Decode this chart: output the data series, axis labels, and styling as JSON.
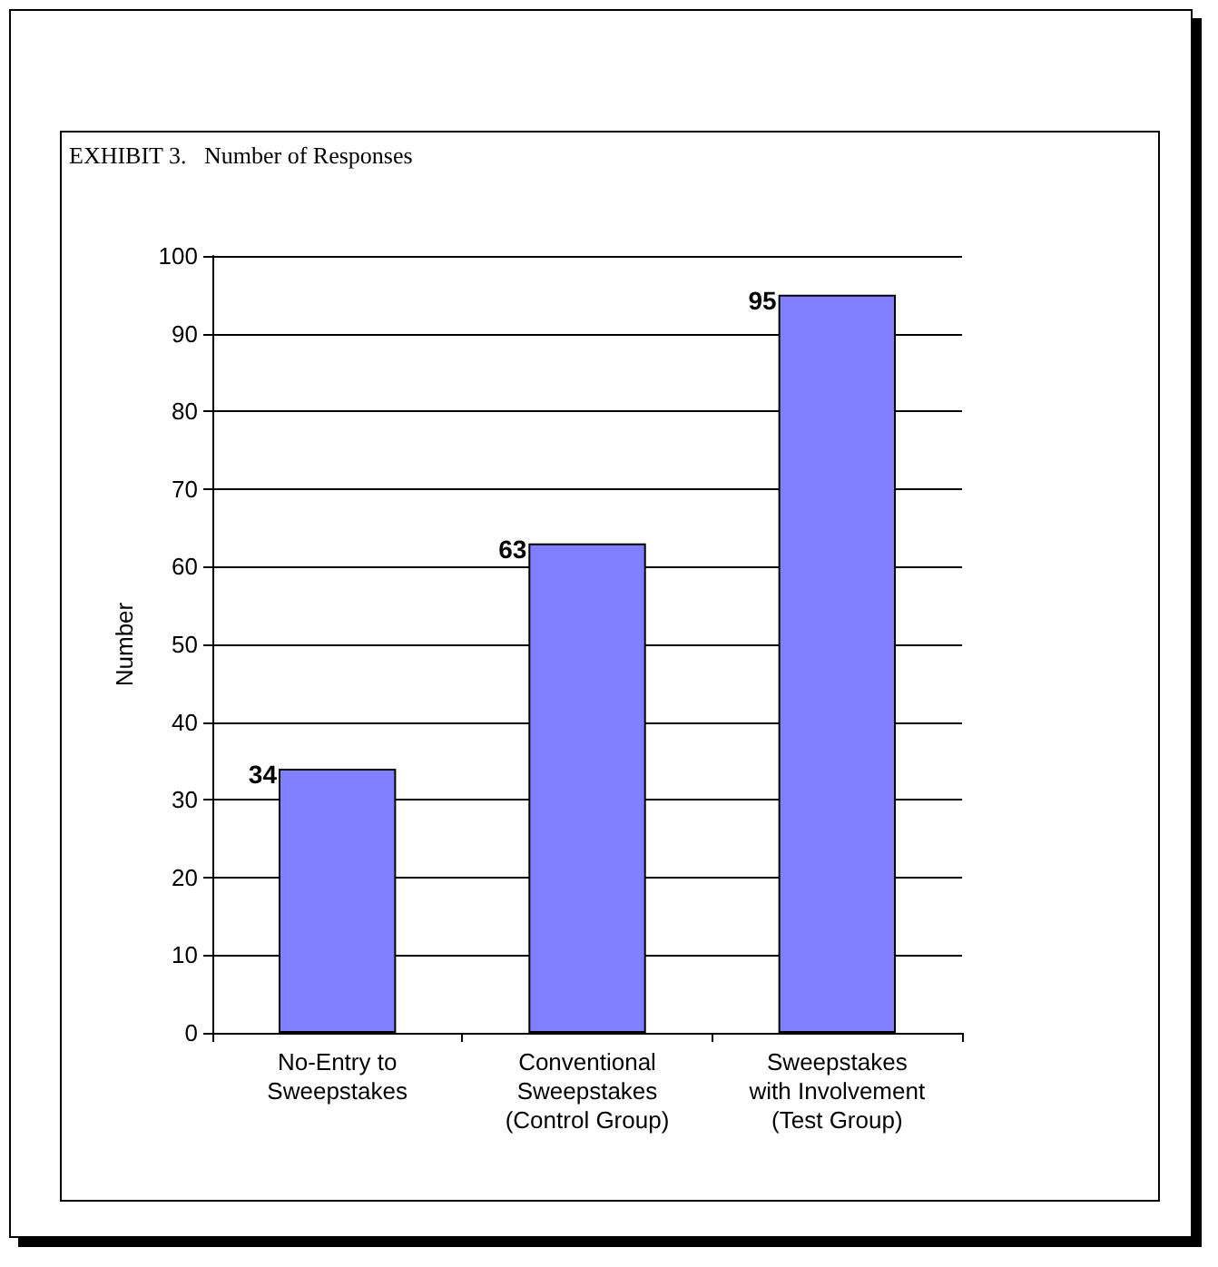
{
  "chart_data": {
    "type": "bar",
    "title": "EXHIBIT 3.   Number of Responses",
    "ylabel": "Number",
    "categories": [
      "No-Entry to\nSweepstakes",
      "Conventional\nSweepstakes\n(Control Group)",
      "Sweepstakes\nwith Involvement\n(Test Group)"
    ],
    "values": [
      34,
      63,
      95
    ],
    "color": "#8080ff",
    "ylim": [
      0,
      100
    ],
    "yticks": [
      0,
      10,
      20,
      30,
      40,
      50,
      60,
      70,
      80,
      90,
      100
    ],
    "grid": "y",
    "data_labels": true
  }
}
